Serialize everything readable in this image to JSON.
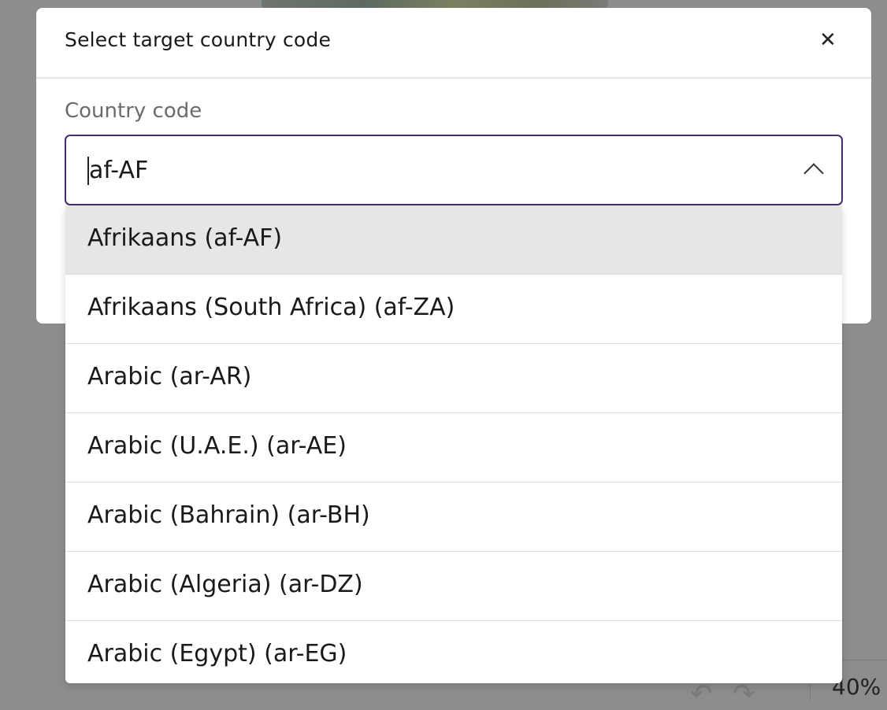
{
  "modal": {
    "title": "Select target country code",
    "close_icon": "close-icon",
    "field_label": "Country code",
    "field_value": "af-AF",
    "toggle_icon": "chevron-up-icon"
  },
  "dropdown": {
    "options": [
      {
        "label": "Afrikaans (af-AF)",
        "selected": true
      },
      {
        "label": "Afrikaans (South Africa) (af-ZA)"
      },
      {
        "label": "Arabic (ar-AR)"
      },
      {
        "label": "Arabic (U.A.E.) (ar-AE)"
      },
      {
        "label": "Arabic (Bahrain) (ar-BH)"
      },
      {
        "label": "Arabic (Algeria) (ar-DZ)"
      },
      {
        "label": "Arabic (Egypt) (ar-EG)"
      }
    ]
  },
  "background": {
    "zoom_level": "40%",
    "undo_icon": "undo-icon",
    "redo_icon": "redo-icon"
  },
  "colors": {
    "accent": "#4a2a6e",
    "highlight": "#e8e6e4",
    "overlay": "#8d8d8d"
  }
}
